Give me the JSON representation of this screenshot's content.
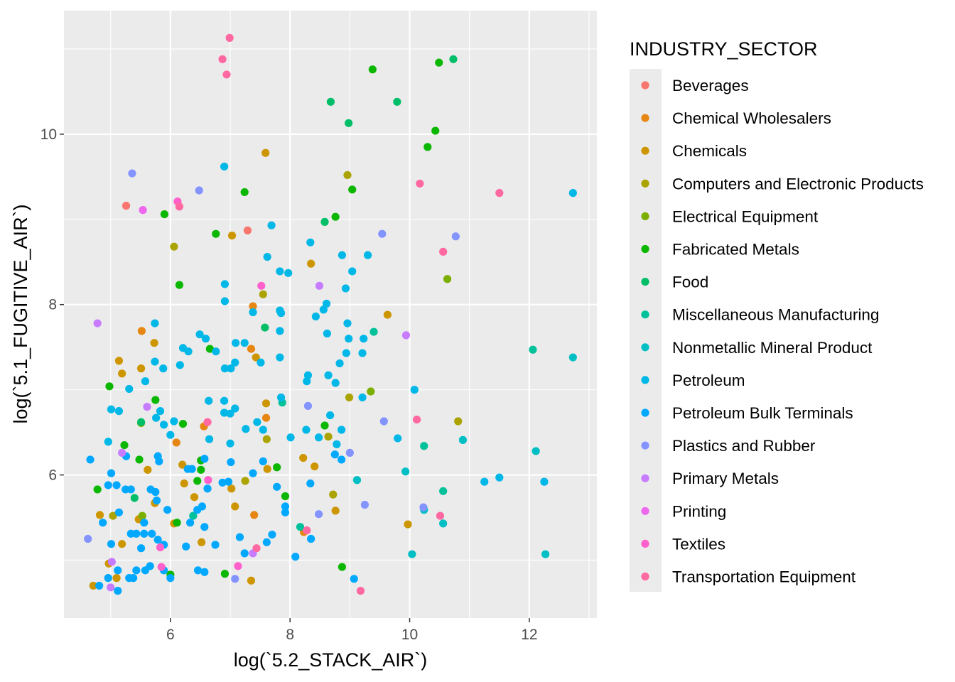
{
  "chart_data": {
    "type": "scatter",
    "xlabel": "log(`5.2_STACK_AIR`)",
    "ylabel": "log(`5.1_FUGITIVE_AIR`)",
    "xlim": [
      4.22,
      13.13
    ],
    "ylim": [
      4.32,
      11.45
    ],
    "x_ticks": [
      6,
      8,
      10,
      12
    ],
    "y_ticks": [
      6,
      8,
      10
    ],
    "grid": true,
    "legend": {
      "title": "INDUSTRY_SECTOR",
      "placement": "right"
    },
    "series": [
      {
        "name": "Beverages",
        "color": "#F8766D",
        "points": [
          [
            5.26,
            9.16
          ],
          [
            7.29,
            8.87
          ]
        ]
      },
      {
        "name": "Chemical Wholesalers",
        "color": "#E68613",
        "points": [
          [
            7.38,
            7.98
          ],
          [
            7.35,
            7.48
          ],
          [
            5.52,
            7.69
          ],
          [
            7.6,
            6.67
          ],
          [
            6.56,
            6.57
          ],
          [
            6.1,
            6.38
          ],
          [
            7.4,
            5.53
          ],
          [
            8.23,
            5.33
          ]
        ]
      },
      {
        "name": "Chemicals",
        "color": "#CD9600",
        "points": [
          [
            7.59,
            9.78
          ],
          [
            7.03,
            8.81
          ],
          [
            8.35,
            8.48
          ],
          [
            9.63,
            7.88
          ],
          [
            7.43,
            7.38
          ],
          [
            5.73,
            7.55
          ],
          [
            5.14,
            7.34
          ],
          [
            5.19,
            7.19
          ],
          [
            5.51,
            7.25
          ],
          [
            7.6,
            6.84
          ],
          [
            5.62,
            6.06
          ],
          [
            6.2,
            6.12
          ],
          [
            6.23,
            5.9
          ],
          [
            7.02,
            5.84
          ],
          [
            8.22,
            6.2
          ],
          [
            8.41,
            6.1
          ],
          [
            7.62,
            6.07
          ],
          [
            6.4,
            5.74
          ],
          [
            7.08,
            5.63
          ],
          [
            8.76,
            5.58
          ],
          [
            4.82,
            5.53
          ],
          [
            5.47,
            5.48
          ],
          [
            5.74,
            5.67
          ],
          [
            6.06,
            5.43
          ],
          [
            6.52,
            5.21
          ],
          [
            7.35,
            4.76
          ],
          [
            5.1,
            4.79
          ],
          [
            4.97,
            4.96
          ],
          [
            4.71,
            4.7
          ],
          [
            9.97,
            5.42
          ],
          [
            5.19,
            5.19
          ]
        ]
      },
      {
        "name": "Computers and Electronic Products",
        "color": "#ABA300",
        "points": [
          [
            8.96,
            9.52
          ],
          [
            6.06,
            8.68
          ],
          [
            7.55,
            8.12
          ],
          [
            8.99,
            6.91
          ],
          [
            10.81,
            6.63
          ],
          [
            7.61,
            6.42
          ],
          [
            8.64,
            6.45
          ],
          [
            7.25,
            5.93
          ],
          [
            8.72,
            5.77
          ],
          [
            5.04,
            5.52
          ]
        ]
      },
      {
        "name": "Electrical Equipment",
        "color": "#7CAE00",
        "points": [
          [
            10.63,
            8.3
          ],
          [
            9.35,
            6.98
          ],
          [
            5.53,
            5.52
          ],
          [
            5.51,
            6.61
          ]
        ]
      },
      {
        "name": "Fabricated Metals",
        "color": "#0CB702",
        "points": [
          [
            9.38,
            10.76
          ],
          [
            10.49,
            10.84
          ],
          [
            10.43,
            10.04
          ],
          [
            10.3,
            9.85
          ],
          [
            9.04,
            9.35
          ],
          [
            8.76,
            9.03
          ],
          [
            7.24,
            9.32
          ],
          [
            5.9,
            9.06
          ],
          [
            6.76,
            8.83
          ],
          [
            6.15,
            8.23
          ],
          [
            6.66,
            7.48
          ],
          [
            5.75,
            6.88
          ],
          [
            4.98,
            7.04
          ],
          [
            5.23,
            6.35
          ],
          [
            6.21,
            6.6
          ],
          [
            5.48,
            6.18
          ],
          [
            6.51,
            6.17
          ],
          [
            6.51,
            6.06
          ],
          [
            4.78,
            5.83
          ],
          [
            6.45,
            5.93
          ],
          [
            7.78,
            6.09
          ],
          [
            7.92,
            5.75
          ],
          [
            8.58,
            6.58
          ],
          [
            6.11,
            5.44
          ],
          [
            6.0,
            4.83
          ],
          [
            6.91,
            4.84
          ],
          [
            8.87,
            4.92
          ]
        ]
      },
      {
        "name": "Food",
        "color": "#00BE67",
        "points": [
          [
            8.68,
            10.38
          ],
          [
            8.98,
            10.13
          ],
          [
            9.79,
            10.38
          ],
          [
            10.73,
            10.88
          ],
          [
            8.58,
            8.97
          ],
          [
            7.58,
            7.73
          ],
          [
            5.51,
            6.62
          ],
          [
            5.4,
            5.73
          ]
        ]
      },
      {
        "name": "Miscellaneous Manufacturing",
        "color": "#00C19A",
        "points": [
          [
            9.4,
            7.68
          ],
          [
            12.06,
            7.47
          ],
          [
            10.24,
            6.34
          ],
          [
            10.56,
            5.81
          ],
          [
            8.17,
            5.39
          ],
          [
            6.38,
            5.52
          ],
          [
            7.87,
            6.85
          ]
        ]
      },
      {
        "name": "Nonmetallic Mineral Product",
        "color": "#00BFC4",
        "points": [
          [
            12.73,
            7.38
          ],
          [
            10.89,
            6.41
          ],
          [
            12.11,
            6.28
          ],
          [
            9.93,
            6.04
          ],
          [
            9.12,
            5.94
          ],
          [
            10.24,
            5.59
          ],
          [
            10.56,
            5.43
          ],
          [
            12.27,
            5.07
          ],
          [
            10.04,
            5.07
          ]
        ]
      },
      {
        "name": "Petroleum",
        "color": "#00B8E7",
        "points": [
          [
            12.73,
            9.31
          ],
          [
            12.25,
            5.92
          ],
          [
            11.5,
            5.97
          ],
          [
            11.25,
            5.92
          ],
          [
            6.9,
            9.62
          ],
          [
            7.69,
            8.93
          ],
          [
            7.62,
            8.56
          ],
          [
            7.83,
            8.39
          ],
          [
            7.97,
            8.37
          ],
          [
            8.34,
            8.73
          ],
          [
            8.87,
            8.58
          ],
          [
            9.04,
            8.39
          ],
          [
            9.3,
            8.58
          ],
          [
            8.93,
            8.19
          ],
          [
            6.91,
            8.24
          ],
          [
            6.91,
            8.04
          ],
          [
            7.38,
            7.91
          ],
          [
            7.83,
            7.93
          ],
          [
            7.85,
            7.9
          ],
          [
            8.61,
            8.01
          ],
          [
            8.56,
            7.94
          ],
          [
            8.43,
            7.86
          ],
          [
            8.96,
            7.78
          ],
          [
            8.62,
            7.66
          ],
          [
            8.98,
            7.6
          ],
          [
            9.23,
            7.6
          ],
          [
            7.83,
            7.69
          ],
          [
            7.83,
            7.38
          ],
          [
            5.74,
            7.78
          ],
          [
            6.49,
            7.65
          ],
          [
            6.59,
            7.6
          ],
          [
            6.21,
            7.49
          ],
          [
            6.3,
            7.45
          ],
          [
            6.76,
            7.45
          ],
          [
            7.09,
            7.55
          ],
          [
            7.24,
            7.55
          ],
          [
            7.51,
            7.32
          ],
          [
            6.91,
            7.25
          ],
          [
            7.01,
            7.25
          ],
          [
            7.08,
            7.32
          ],
          [
            6.16,
            7.29
          ],
          [
            5.88,
            7.25
          ],
          [
            5.74,
            7.33
          ],
          [
            5.58,
            7.1
          ],
          [
            5.31,
            7.01
          ],
          [
            8.3,
            7.17
          ],
          [
            8.28,
            7.1
          ],
          [
            8.64,
            7.17
          ],
          [
            8.76,
            7.08
          ],
          [
            8.83,
            7.31
          ],
          [
            8.94,
            7.43
          ],
          [
            9.21,
            7.43
          ],
          [
            10.08,
            7.0
          ],
          [
            9.21,
            6.91
          ],
          [
            6.9,
            6.87
          ],
          [
            6.64,
            6.87
          ],
          [
            7.08,
            6.78
          ],
          [
            6.9,
            6.73
          ],
          [
            7.0,
            6.72
          ],
          [
            5.01,
            6.77
          ],
          [
            5.14,
            6.75
          ],
          [
            5.83,
            6.75
          ],
          [
            5.76,
            6.67
          ],
          [
            5.89,
            6.59
          ],
          [
            6.06,
            6.63
          ],
          [
            7.45,
            6.62
          ],
          [
            7.26,
            6.54
          ],
          [
            7.55,
            6.53
          ],
          [
            6.65,
            6.42
          ],
          [
            7.0,
            6.37
          ],
          [
            8.01,
            6.44
          ],
          [
            8.27,
            6.53
          ],
          [
            8.48,
            6.44
          ],
          [
            8.78,
            6.36
          ],
          [
            8.86,
            6.53
          ],
          [
            9.8,
            6.43
          ],
          [
            8.67,
            6.7
          ],
          [
            7.85,
            6.91
          ],
          [
            4.96,
            6.39
          ],
          [
            6.0,
            6.47
          ]
        ]
      },
      {
        "name": "Petroleum Bulk Terminals",
        "color": "#00A9FF",
        "points": [
          [
            5.79,
            6.22
          ],
          [
            5.81,
            6.16
          ],
          [
            6.57,
            6.19
          ],
          [
            6.36,
            6.07
          ],
          [
            6.29,
            6.07
          ],
          [
            4.66,
            6.18
          ],
          [
            5.01,
            6.02
          ],
          [
            5.26,
            6.22
          ],
          [
            8.75,
            6.24
          ],
          [
            8.86,
            6.18
          ],
          [
            7.55,
            6.16
          ],
          [
            7.38,
            6.02
          ],
          [
            7.01,
            6.15
          ],
          [
            6.87,
            5.91
          ],
          [
            6.97,
            5.92
          ],
          [
            4.96,
            5.88
          ],
          [
            5.1,
            5.88
          ],
          [
            5.25,
            5.83
          ],
          [
            5.34,
            5.83
          ],
          [
            5.67,
            5.83
          ],
          [
            5.75,
            5.8
          ],
          [
            6.62,
            5.84
          ],
          [
            7.78,
            5.86
          ],
          [
            8.34,
            5.9
          ],
          [
            7.92,
            5.63
          ],
          [
            7.92,
            5.56
          ],
          [
            5.14,
            5.56
          ],
          [
            4.87,
            5.44
          ],
          [
            5.56,
            5.44
          ],
          [
            5.95,
            5.59
          ],
          [
            5.77,
            5.7
          ],
          [
            6.45,
            5.59
          ],
          [
            6.53,
            5.63
          ],
          [
            6.33,
            5.44
          ],
          [
            6.57,
            5.39
          ],
          [
            5.34,
            5.31
          ],
          [
            5.43,
            5.31
          ],
          [
            5.56,
            5.31
          ],
          [
            5.69,
            5.31
          ],
          [
            5.79,
            5.24
          ],
          [
            5.89,
            5.18
          ],
          [
            5.01,
            5.19
          ],
          [
            5.51,
            5.14
          ],
          [
            6.26,
            5.16
          ],
          [
            6.75,
            5.18
          ],
          [
            7.16,
            5.27
          ],
          [
            7.24,
            5.08
          ],
          [
            7.61,
            5.21
          ],
          [
            7.7,
            5.3
          ],
          [
            8.35,
            5.25
          ],
          [
            8.09,
            5.04
          ],
          [
            9.07,
            4.78
          ],
          [
            5.12,
            4.88
          ],
          [
            5.38,
            4.79
          ],
          [
            5.43,
            4.88
          ],
          [
            5.58,
            4.88
          ],
          [
            5.66,
            4.93
          ],
          [
            5.89,
            4.88
          ],
          [
            6.0,
            4.79
          ],
          [
            6.46,
            4.88
          ],
          [
            6.57,
            4.86
          ],
          [
            4.96,
            4.79
          ],
          [
            4.81,
            4.7
          ],
          [
            5.12,
            4.64
          ],
          [
            5.31,
            4.79
          ]
        ]
      },
      {
        "name": "Plastics and Rubber",
        "color": "#8494FF",
        "points": [
          [
            5.36,
            9.54
          ],
          [
            6.48,
            9.34
          ],
          [
            9.54,
            8.83
          ],
          [
            10.77,
            8.8
          ],
          [
            8.3,
            6.81
          ],
          [
            9.57,
            6.63
          ],
          [
            9.0,
            6.26
          ],
          [
            9.25,
            5.65
          ],
          [
            10.23,
            5.62
          ],
          [
            8.48,
            5.54
          ],
          [
            7.08,
            4.78
          ],
          [
            4.62,
            5.25
          ]
        ]
      },
      {
        "name": "Primary Metals",
        "color": "#C77CFF",
        "points": [
          [
            4.78,
            7.78
          ],
          [
            8.49,
            8.22
          ],
          [
            9.94,
            7.64
          ],
          [
            5.61,
            6.8
          ],
          [
            5.19,
            6.26
          ],
          [
            5.02,
            4.98
          ],
          [
            7.38,
            5.08
          ],
          [
            5.0,
            4.68
          ]
        ]
      },
      {
        "name": "Printing",
        "color": "#ED68ED",
        "points": [
          [
            5.54,
            9.11
          ]
        ]
      },
      {
        "name": "Textiles",
        "color": "#FF61CC",
        "points": [
          [
            6.12,
            9.21
          ],
          [
            7.52,
            8.22
          ],
          [
            6.63,
            5.94
          ],
          [
            7.13,
            4.93
          ],
          [
            5.83,
            5.15
          ],
          [
            5.85,
            4.92
          ]
        ]
      },
      {
        "name": "Transportation Equipment",
        "color": "#FF68A1",
        "points": [
          [
            6.99,
            11.13
          ],
          [
            6.87,
            10.88
          ],
          [
            6.94,
            10.7
          ],
          [
            6.15,
            9.15
          ],
          [
            10.17,
            9.42
          ],
          [
            11.5,
            9.31
          ],
          [
            10.56,
            8.62
          ],
          [
            10.12,
            6.65
          ],
          [
            10.51,
            5.52
          ],
          [
            8.28,
            5.35
          ],
          [
            9.18,
            4.64
          ],
          [
            7.44,
            5.14
          ],
          [
            6.62,
            6.62
          ]
        ]
      }
    ]
  }
}
